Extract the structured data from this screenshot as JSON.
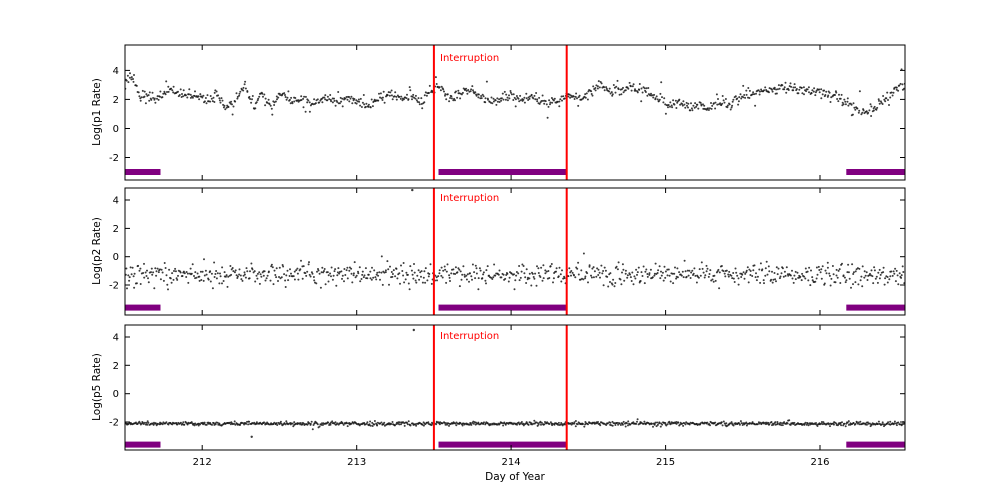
{
  "figure": {
    "background": "#ffffff"
  },
  "chart_data": {
    "type": "scatter",
    "xlabel": "Day of Year",
    "xlim": [
      211.5,
      216.55
    ],
    "x_ticks": [
      212,
      213,
      214,
      215,
      216
    ],
    "seed": 77,
    "interruption": {
      "label": "Interruption",
      "x_lines": [
        213.5,
        214.36
      ],
      "color": "#ff0000"
    },
    "coverage_bars": {
      "color": "#800080",
      "intervals": [
        [
          211.5,
          211.73
        ],
        [
          213.53,
          214.36
        ],
        [
          216.17,
          216.55
        ]
      ]
    },
    "panels": [
      {
        "id": "p1",
        "ylabel": "Log(p1 Rate)",
        "ylim": [
          -3.55,
          5.75
        ],
        "y_ticks": [
          -2,
          0,
          2,
          4
        ],
        "bar_y": -3.0,
        "marker_color": "#1a1a1a",
        "noise_sigma": 0.18,
        "burst_prob": 0.07,
        "burst_sigma": 0.5,
        "n_points": 950,
        "annotation": {
          "text": "Interruption"
        },
        "trend": [
          [
            211.5,
            3.3
          ],
          [
            211.55,
            3.6
          ],
          [
            211.6,
            2.3
          ],
          [
            211.68,
            2.0
          ],
          [
            211.78,
            2.6
          ],
          [
            211.88,
            2.3
          ],
          [
            211.98,
            2.2
          ],
          [
            212.04,
            1.9
          ],
          [
            212.1,
            2.4
          ],
          [
            212.16,
            1.3
          ],
          [
            212.22,
            2.1
          ],
          [
            212.28,
            2.9
          ],
          [
            212.33,
            1.5
          ],
          [
            212.38,
            2.3
          ],
          [
            212.45,
            1.6
          ],
          [
            212.52,
            2.4
          ],
          [
            212.58,
            1.8
          ],
          [
            212.65,
            2.1
          ],
          [
            212.72,
            1.7
          ],
          [
            212.8,
            2.1
          ],
          [
            212.88,
            1.9
          ],
          [
            212.95,
            2.0
          ],
          [
            213.02,
            1.8
          ],
          [
            213.08,
            1.5
          ],
          [
            213.15,
            2.2
          ],
          [
            213.22,
            2.3
          ],
          [
            213.28,
            1.9
          ],
          [
            213.35,
            2.2
          ],
          [
            213.42,
            1.7
          ],
          [
            213.48,
            2.6
          ],
          [
            213.52,
            2.9
          ],
          [
            213.58,
            2.3
          ],
          [
            213.65,
            2.2
          ],
          [
            213.72,
            2.7
          ],
          [
            213.78,
            2.4
          ],
          [
            213.85,
            2.0
          ],
          [
            213.92,
            1.9
          ],
          [
            214.0,
            2.3
          ],
          [
            214.08,
            2.0
          ],
          [
            214.15,
            2.2
          ],
          [
            214.22,
            1.8
          ],
          [
            214.3,
            1.8
          ],
          [
            214.36,
            2.3
          ],
          [
            214.45,
            2.1
          ],
          [
            214.52,
            2.6
          ],
          [
            214.58,
            3.0
          ],
          [
            214.65,
            2.6
          ],
          [
            214.72,
            2.7
          ],
          [
            214.8,
            2.9
          ],
          [
            214.88,
            2.5
          ],
          [
            214.95,
            2.1
          ],
          [
            215.02,
            1.6
          ],
          [
            215.08,
            1.9
          ],
          [
            215.15,
            1.3
          ],
          [
            215.22,
            1.7
          ],
          [
            215.28,
            1.3
          ],
          [
            215.35,
            1.9
          ],
          [
            215.42,
            1.6
          ],
          [
            215.5,
            2.2
          ],
          [
            215.6,
            2.5
          ],
          [
            215.7,
            2.7
          ],
          [
            215.8,
            2.8
          ],
          [
            215.9,
            2.7
          ],
          [
            216.0,
            2.5
          ],
          [
            216.1,
            2.2
          ],
          [
            216.2,
            1.6
          ],
          [
            216.3,
            1.1
          ],
          [
            216.36,
            1.5
          ],
          [
            216.42,
            2.0
          ],
          [
            216.48,
            2.7
          ],
          [
            216.55,
            3.0
          ]
        ],
        "outliers": []
      },
      {
        "id": "p2",
        "ylabel": "Log(p2 Rate)",
        "ylim": [
          -4.12,
          4.85
        ],
        "y_ticks": [
          -2,
          0,
          2,
          4
        ],
        "bar_y": -3.6,
        "marker_color": "#1a1a1a",
        "noise_sigma": 0.38,
        "burst_prob": 0,
        "burst_sigma": 0,
        "n_points": 900,
        "annotation": {
          "text": "Interruption"
        },
        "trend": [
          [
            211.5,
            -1.25
          ],
          [
            216.55,
            -1.25
          ]
        ],
        "outliers": [
          [
            213.36,
            4.7
          ]
        ]
      },
      {
        "id": "p5",
        "ylabel": "Log(p5 Rate)",
        "ylim": [
          -3.98,
          4.85
        ],
        "y_ticks": [
          -2,
          0,
          2,
          4
        ],
        "bar_y": -3.6,
        "marker_color": "#1a1a1a",
        "noise_sigma": 0.07,
        "burst_prob": 0.02,
        "burst_sigma": 0.12,
        "n_points": 1000,
        "annotation": {
          "text": "Interruption"
        },
        "trend": [
          [
            211.5,
            -2.12
          ],
          [
            216.55,
            -2.12
          ]
        ],
        "outliers": [
          [
            213.37,
            4.5
          ],
          [
            212.32,
            -3.05
          ]
        ]
      }
    ]
  }
}
